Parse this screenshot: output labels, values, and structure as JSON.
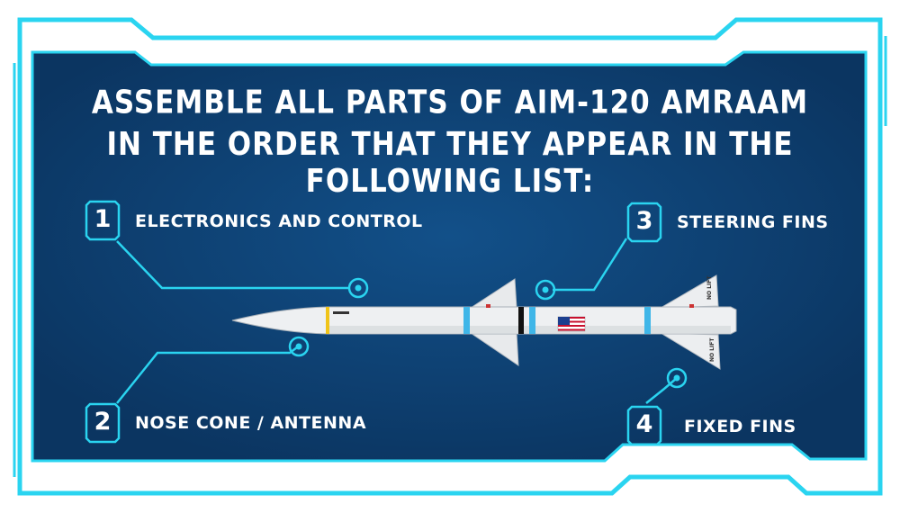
{
  "title": {
    "line1": "ASSEMBLE ALL PARTS OF AIM-120 AMRAAM",
    "line2": "IN THE ORDER THAT THEY APPEAR IN THE FOLLOWING LIST:"
  },
  "steps": [
    {
      "number": "1",
      "label": "ELECTRONICS AND CONTROL"
    },
    {
      "number": "2",
      "label": "NOSE CONE / ANTENNA"
    },
    {
      "number": "3",
      "label": "STEERING FINS"
    },
    {
      "number": "4",
      "label": "FIXED FINS"
    }
  ],
  "missile": {
    "fin_marking": "NO LIFT"
  },
  "colors": {
    "panel": "#0d3c66",
    "accent": "#2ad4f0",
    "missile_body": "#eef0f2",
    "missile_band": "#3fb6e8"
  }
}
